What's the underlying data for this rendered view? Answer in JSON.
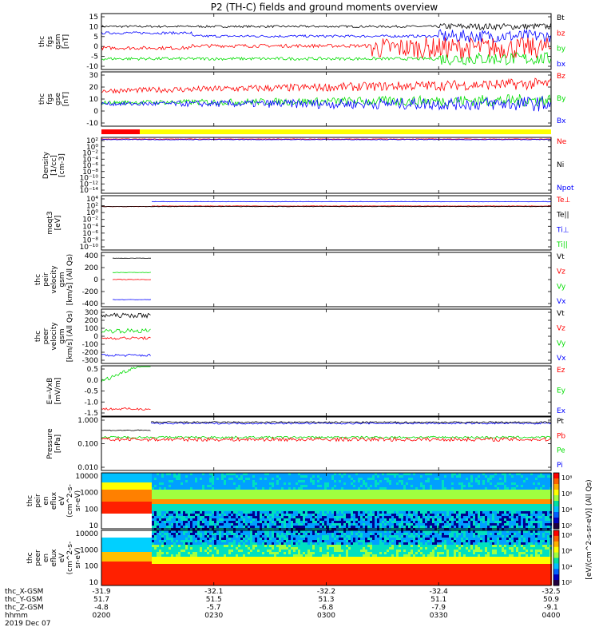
{
  "title": "P2 (TH-C) fields and ground moments overview",
  "colors": {
    "black": "#000000",
    "red": "#ff0000",
    "green": "#00dd00",
    "blue": "#0000ff",
    "dark_red": "#cc0000",
    "yellow": "#ffff00"
  },
  "panels": [
    {
      "id": "fgs-gsm",
      "ylabel": [
        "thc",
        "fgs",
        "gsm",
        "[nT]"
      ],
      "yticks": [
        "15",
        "10",
        "5",
        "0",
        "-5",
        "-10"
      ],
      "ylim": [
        -10,
        16
      ],
      "legend": [
        "Bt",
        "bz",
        "by",
        "bx"
      ]
    },
    {
      "id": "fgs-gse",
      "ylabel": [
        "thc",
        "fgs",
        "gse",
        "[nT]"
      ],
      "yticks": [
        "30",
        "20",
        "10",
        "0",
        "-10"
      ],
      "ylim": [
        -16,
        30
      ],
      "legend": [
        "Bz",
        "By",
        "Bx"
      ]
    },
    {
      "id": "density",
      "ylabel": [
        "Density",
        "[1/cc]",
        "[cm-3]"
      ],
      "yticks": [
        "10²",
        "10⁰",
        "10⁻²",
        "10⁻⁴",
        "10⁻⁶",
        "10⁻⁸",
        "10⁻¹⁰",
        "10⁻¹²",
        "10⁻¹⁴"
      ],
      "legend": [
        "Ne",
        "Ni",
        "Npot"
      ]
    },
    {
      "id": "temperature",
      "ylabel": [
        "moqt3",
        "[eV]"
      ],
      "yticks": [
        "10⁴",
        "10²",
        "10⁰",
        "10⁻²",
        "10⁻⁴",
        "10⁻⁶",
        "10⁻⁸",
        "10⁻¹⁰"
      ],
      "legend": [
        "Te⊥",
        "Te||",
        "Ti⊥",
        "Ti||"
      ]
    },
    {
      "id": "peir-velocity",
      "ylabel": [
        "thc",
        "peir",
        "velocity",
        "gsm",
        "[km/s] (All Qs)"
      ],
      "yticks": [
        "400",
        "200",
        "0",
        "-200",
        "-400"
      ],
      "ylim": [
        -420,
        420
      ],
      "legend": [
        "Vt",
        "Vz",
        "Vy",
        "Vx"
      ]
    },
    {
      "id": "peer-velocity",
      "ylabel": [
        "thc",
        "peer",
        "velocity",
        "gsm",
        "[km/s] (All Qs)"
      ],
      "yticks": [
        "300",
        "200",
        "100",
        "0",
        "-100",
        "-200",
        "-300"
      ],
      "ylim": [
        -300,
        300
      ],
      "legend": [
        "Vt",
        "Vz",
        "Vy",
        "Vx"
      ]
    },
    {
      "id": "efield",
      "ylabel": [
        "E=-VxB",
        "[mV/m]"
      ],
      "yticks": [
        "0.5",
        "0.0",
        "-0.5",
        "-1.0",
        "-1.5"
      ],
      "ylim": [
        -1.5,
        0.6
      ],
      "legend": [
        "Ez",
        "Ey",
        "Ex"
      ]
    },
    {
      "id": "pressure",
      "ylabel": [
        "Pressure",
        "[nPa]"
      ],
      "yticks": [
        "1.000",
        "0.100",
        "0.010"
      ],
      "legend": [
        "Pt",
        "Pb",
        "Pe",
        "Pi"
      ]
    },
    {
      "id": "peir-spectrogram",
      "ylabel": [
        "thc",
        "peir",
        "en",
        "eflux",
        "eV",
        "(cm^2-s-",
        "sr-eV)"
      ],
      "yticks": [
        "10000",
        "1000",
        "100",
        "10"
      ]
    },
    {
      "id": "peer-spectrogram",
      "ylabel": [
        "thc",
        "peer",
        "en",
        "eflux",
        "eV",
        "(cm^2-s-",
        "sr-eV)"
      ],
      "yticks": [
        "10000",
        "1000",
        "100",
        "10"
      ]
    }
  ],
  "colorbar": {
    "label": "[eV/(cm^2-s-sr-eV)] (All Qs)",
    "ticks_upper": [
      "10⁸",
      "10⁶",
      "10⁴",
      "10²"
    ],
    "ticks_lower": [
      "10⁸",
      "10⁶",
      "10⁴",
      "10²"
    ]
  },
  "xaxis": {
    "row_labels": [
      "thc_X-GSM",
      "thc_Y-GSM",
      "thc_Z-GSM",
      "hhmm",
      "2019 Dec 07"
    ],
    "ticks": [
      {
        "top": "-31.9",
        "values": [
          "51.7",
          "-4.8",
          "0200"
        ]
      },
      {
        "top": "-32.1",
        "values": [
          "51.5",
          "-5.7",
          "0230"
        ]
      },
      {
        "top": "-32.2",
        "values": [
          "51.3",
          "-6.8",
          "0300"
        ]
      },
      {
        "top": "-32.4",
        "values": [
          "51.1",
          "-7.9",
          "0330"
        ]
      },
      {
        "top": "-32.5",
        "values": [
          "50.9",
          "-9.1",
          "0400"
        ]
      }
    ]
  },
  "chart_data": {
    "type": "line",
    "title": "P2 (TH-C) fields and ground moments overview",
    "x": [
      "0200",
      "0230",
      "0300",
      "0330",
      "0400"
    ],
    "xlabel": "hhmm",
    "panels": [
      {
        "name": "fgs gsm",
        "series": [
          {
            "name": "Bt",
            "values": [
              10,
              9,
              9,
              10,
              10
            ]
          },
          {
            "name": "bz",
            "values": [
              -1,
              1,
              -1,
              0,
              0
            ]
          },
          {
            "name": "by",
            "values": [
              -4,
              -6,
              -4,
              -4,
              -3
            ]
          },
          {
            "name": "bx",
            "values": [
              8,
              5,
              7,
              7,
              7
            ]
          }
        ]
      },
      {
        "name": "fgs gse",
        "series": [
          {
            "name": "Bz",
            "values": [
              15,
              13,
              17,
              18,
              21
            ]
          },
          {
            "name": "By",
            "values": [
              3,
              4,
              6,
              5,
              6
            ]
          },
          {
            "name": "Bx",
            "values": [
              2,
              4,
              4,
              4,
              2
            ]
          }
        ]
      }
    ]
  }
}
